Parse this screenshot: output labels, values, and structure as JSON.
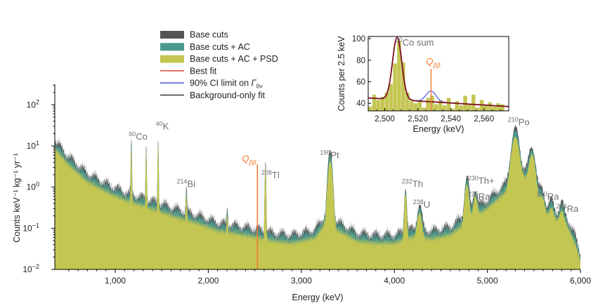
{
  "colors": {
    "base_cuts": "#555555",
    "base_ac": "#4b9a8e",
    "base_ac_psd": "#c4c652",
    "best_fit": "#d94a3a",
    "ci_limit": "#4a55d8",
    "bkg_fit": "#333333",
    "q_line": "#f07a30",
    "inset_fit": "#7a1022"
  },
  "chart_data": [
    {
      "type": "area",
      "title": "",
      "xlabel": "Energy (keV)",
      "ylabel": "Counts keV⁻¹ kg⁻¹ yr⁻¹",
      "xlim": [
        350,
        6000
      ],
      "ylim_log10": [
        -2,
        2.5
      ],
      "yscale": "log",
      "x_ticks": [
        1000,
        2000,
        3000,
        4000,
        5000,
        6000
      ],
      "x_tick_labels": [
        "1,000",
        "2,000",
        "3,000",
        "4,000",
        "5,000",
        "6,000"
      ],
      "y_ticks": [
        {
          "base": "10",
          "exp": "2"
        },
        {
          "base": "10",
          "exp": "1"
        },
        {
          "base": "10",
          "exp": "0"
        },
        {
          "base": "10",
          "exp": "−1"
        },
        {
          "base": "10",
          "exp": "−2"
        }
      ],
      "y_tick_values_log10": [
        2,
        1,
        0,
        -1,
        -2
      ],
      "legend": {
        "placement": "top-center",
        "entries": [
          {
            "label": "Base cuts",
            "kind": "patch",
            "color_key": "base_cuts"
          },
          {
            "label": "Base cuts + AC",
            "kind": "patch",
            "color_key": "base_ac"
          },
          {
            "label": "Base cuts + AC + PSD",
            "kind": "patch",
            "color_key": "base_ac_psd"
          },
          {
            "label": "Best fit",
            "kind": "line",
            "color_key": "best_fit"
          },
          {
            "label": "90% CI limit on ",
            "label_math": "Γ",
            "label_sub": "0ν",
            "kind": "line",
            "color_key": "ci_limit"
          },
          {
            "label": "Background-only fit",
            "kind": "line",
            "color_key": "bkg_fit"
          }
        ]
      },
      "continuum_log10": [
        [
          350,
          0.95
        ],
        [
          500,
          0.55
        ],
        [
          700,
          0.15
        ],
        [
          900,
          -0.1
        ],
        [
          1100,
          -0.3
        ],
        [
          1300,
          -0.45
        ],
        [
          1500,
          -0.6
        ],
        [
          1700,
          -0.75
        ],
        [
          1900,
          -0.88
        ],
        [
          2100,
          -1.05
        ],
        [
          2300,
          -1.12
        ],
        [
          2500,
          -1.2
        ],
        [
          2700,
          -1.3
        ],
        [
          2900,
          -1.35
        ],
        [
          3000,
          -1.3
        ],
        [
          3150,
          -1.22
        ],
        [
          3250,
          -0.9
        ],
        [
          3400,
          -1.05
        ],
        [
          3600,
          -1.3
        ],
        [
          3800,
          -1.35
        ],
        [
          4000,
          -1.35
        ],
        [
          4200,
          -1.2
        ],
        [
          4400,
          -1.25
        ],
        [
          4600,
          -1.15
        ],
        [
          4800,
          -0.8
        ],
        [
          5000,
          -0.5
        ],
        [
          5200,
          -0.1
        ],
        [
          5300,
          0.4
        ],
        [
          5500,
          0.1
        ],
        [
          5600,
          -0.6
        ],
        [
          5700,
          -0.75
        ],
        [
          5850,
          -0.9
        ],
        [
          5950,
          -1.4
        ],
        [
          6000,
          -1.8
        ]
      ],
      "ac_offset_log10": 0.12,
      "base_offset_log10": 0.2,
      "peaks": [
        {
          "energy": 1173,
          "log10_peak": 0.9,
          "width": 4
        },
        {
          "energy": 1332,
          "log10_peak": 0.85,
          "width": 4
        },
        {
          "energy": 1461,
          "log10_peak": 1.0,
          "width": 4
        },
        {
          "energy": 1764,
          "log10_peak": -0.3,
          "width": 5
        },
        {
          "energy": 2204,
          "log10_peak": -0.85,
          "width": 5
        },
        {
          "energy": 2614,
          "log10_peak": 0.5,
          "width": 5
        },
        {
          "energy": 3310,
          "log10_peak": 0.62,
          "width": 18
        },
        {
          "energy": 4120,
          "log10_peak": -0.2,
          "width": 10
        },
        {
          "energy": 4270,
          "log10_peak": -0.75,
          "width": 20
        },
        {
          "energy": 4780,
          "log10_peak": 0.0,
          "width": 18
        },
        {
          "energy": 4870,
          "log10_peak": -0.4,
          "width": 18
        },
        {
          "energy": 5300,
          "log10_peak": 1.15,
          "width": 30
        },
        {
          "energy": 5480,
          "log10_peak": 0.7,
          "width": 25
        },
        {
          "energy": 5590,
          "log10_peak": -0.5,
          "width": 20
        },
        {
          "energy": 5690,
          "log10_peak": -0.9,
          "width": 20
        },
        {
          "energy": 5800,
          "log10_peak": -0.9,
          "width": 20
        }
      ],
      "q_bb_energy": 2528,
      "annotations": [
        {
          "id": "co60",
          "sup": "60",
          "text": "Co",
          "energy": 1175,
          "log10_y": 1.15
        },
        {
          "id": "k40",
          "sup": "40",
          "text": "K",
          "energy": 1465,
          "log10_y": 1.4
        },
        {
          "id": "bi214",
          "sup": "214",
          "text": "Bi",
          "energy": 1690,
          "log10_y": 0.0
        },
        {
          "id": "tl208",
          "sup": "208",
          "text": "Tl",
          "energy": 2600,
          "log10_y": 0.22
        },
        {
          "id": "pt190",
          "sup": "190",
          "text": "Pt",
          "energy": 3230,
          "log10_y": 0.7
        },
        {
          "id": "th232",
          "sup": "232",
          "text": "Th",
          "energy": 4110,
          "log10_y": 0.0
        },
        {
          "id": "u238",
          "sup": "238",
          "text": "U",
          "energy": 4230,
          "log10_y": -0.5
        },
        {
          "id": "th230",
          "sup": "230",
          "text": "Th+",
          "energy": 4820,
          "log10_y": 0.08
        },
        {
          "id": "ra226",
          "sup": "226",
          "text": "Ra",
          "energy": 4820,
          "log10_y": -0.3
        },
        {
          "id": "po210",
          "sup": "210",
          "text": "Po",
          "energy": 5250,
          "log10_y": 1.5
        },
        {
          "id": "ra210",
          "sup": "210",
          "text": "Ra",
          "energy": 5560,
          "log10_y": -0.3
        },
        {
          "id": "ra224",
          "sup": "224",
          "text": "Ra",
          "energy": 5770,
          "log10_y": -0.6
        }
      ],
      "q_label": {
        "text": "Q",
        "sub": "ββ"
      }
    },
    {
      "type": "bar",
      "title": "",
      "xlabel": "Energy (keV)",
      "ylabel": "Counts per 2.5 keV",
      "xlim": [
        2490,
        2575
      ],
      "ylim": [
        33,
        102
      ],
      "x_ticks": [
        2500,
        2520,
        2540,
        2560
      ],
      "x_tick_labels": [
        "2,500",
        "2,520",
        "2,540",
        "2,560"
      ],
      "y_ticks": [
        40,
        60,
        80,
        100
      ],
      "bin_width": 2.5,
      "bins": [
        [
          2490,
          37
        ],
        [
          2492.5,
          48
        ],
        [
          2495,
          43
        ],
        [
          2497.5,
          46
        ],
        [
          2500,
          50
        ],
        [
          2502.5,
          58
        ],
        [
          2505,
          77
        ],
        [
          2507.5,
          98
        ],
        [
          2510,
          78
        ],
        [
          2512.5,
          50
        ],
        [
          2515,
          42
        ],
        [
          2517.5,
          40
        ],
        [
          2520,
          43
        ],
        [
          2522.5,
          36
        ],
        [
          2525,
          45
        ],
        [
          2527.5,
          47
        ],
        [
          2530,
          39
        ],
        [
          2532.5,
          43
        ],
        [
          2535,
          38
        ],
        [
          2537.5,
          45
        ],
        [
          2540,
          35
        ],
        [
          2542.5,
          42
        ],
        [
          2545,
          38
        ],
        [
          2547.5,
          47
        ],
        [
          2550,
          39
        ],
        [
          2552.5,
          48
        ],
        [
          2555,
          36
        ],
        [
          2557.5,
          43
        ],
        [
          2560,
          38
        ],
        [
          2562.5,
          41
        ],
        [
          2565,
          37
        ],
        [
          2567.5,
          40
        ],
        [
          2570,
          39
        ]
      ],
      "fit_peak": {
        "center": 2507.5,
        "amplitude": 58,
        "sigma": 2.8
      },
      "fit_baseline": [
        2490,
        45,
        2575,
        37
      ],
      "ci_bump": {
        "center": 2528,
        "amplitude": 10,
        "sigma": 3
      },
      "q_bb_energy": 2528,
      "annotations": [
        {
          "id": "co60sum",
          "sup": "60",
          "text": "Co sum",
          "energy": 2509,
          "y": 100
        }
      ],
      "q_label": {
        "text": "Q",
        "sub": "ββ"
      }
    }
  ]
}
